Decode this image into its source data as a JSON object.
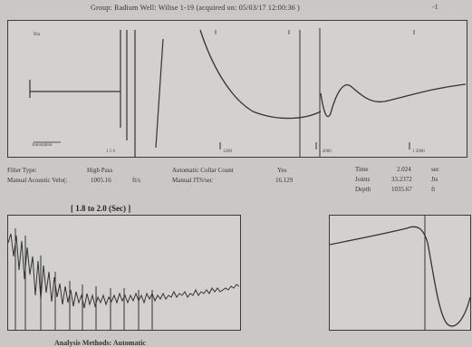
{
  "header": {
    "text": "Group: Radium    Well: Wiltse 1-19 (acquired on: 05/03/17 12:00:36 )",
    "mark": "-1"
  },
  "main_plot": {
    "labels": {
      "top_left": "Bla",
      "mid_left": "Annotation",
      "mid_bottom": "1 5 6",
      "bottom_mid": "1200",
      "bottom_right_a": "1 2000",
      "bottom_right_b": "1 2000"
    }
  },
  "info": {
    "filter_type_label": "Filter Type:",
    "filter_type_value": "High Pass",
    "manual_velocity_label": "Manual Acoustic Velo(:",
    "manual_velocity_value": "1005.16",
    "manual_velocity_unit": "ft/s",
    "collar_count_label": "Automatic Collar Count",
    "collar_count_value": "Yes",
    "manual_jts_label": "Manual JTS/sec",
    "manual_jts_value": "16.129",
    "time_label": "Time",
    "time_value": "2.024",
    "time_unit": "sec",
    "joints_label": "Joints",
    "joints_value": "33.2372",
    "joints_unit": "Jts",
    "depth_label": "Depth",
    "depth_value": "1035.67",
    "depth_unit": "ft"
  },
  "range_title": "[ 1.8  to  2.0 (Sec) ]",
  "footer": "Analysis Methods:   Automatic"
}
